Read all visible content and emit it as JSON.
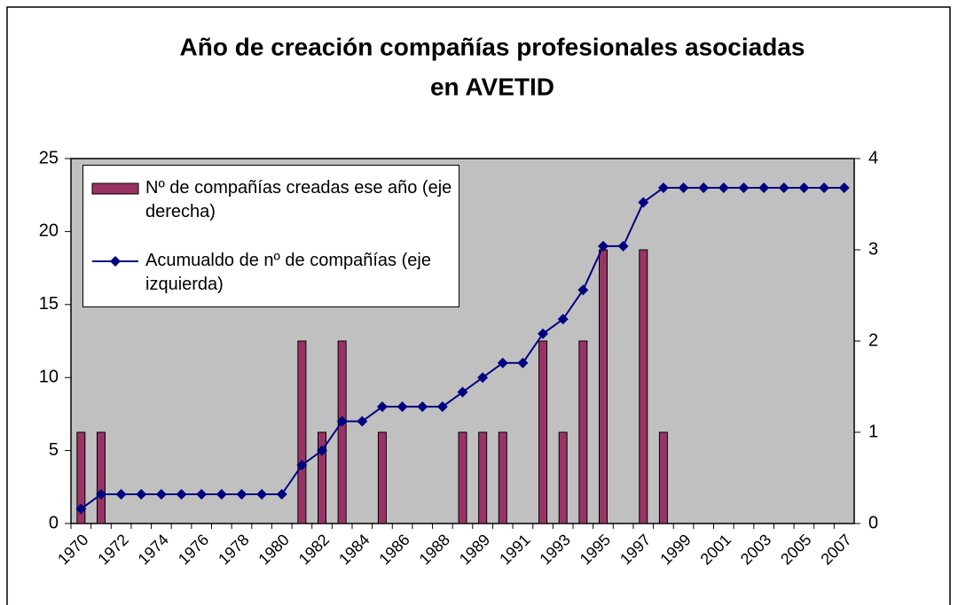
{
  "chart_data": {
    "type": "bar+line",
    "title": [
      "Año  de creación compañías profesionales asociadas",
      "en AVETID"
    ],
    "categories": [
      "1970",
      null,
      "1972",
      null,
      "1974",
      null,
      "1976",
      null,
      "1978",
      null,
      "1980",
      null,
      "1982",
      null,
      "1984",
      null,
      "1986",
      null,
      "1988",
      null,
      "1989",
      null,
      "1991",
      null,
      "1993",
      null,
      "1995",
      null,
      "1997",
      null,
      "1999",
      null,
      "2001",
      null,
      "2003",
      null,
      "2005",
      null,
      "2007"
    ],
    "series": [
      {
        "name": "Nº de compañías creadas ese año (eje derecha)",
        "type": "bar",
        "axis": "y2",
        "color": "#993366",
        "values": [
          1,
          1,
          0,
          0,
          0,
          0,
          0,
          0,
          0,
          0,
          0,
          2,
          1,
          2,
          0,
          1,
          0,
          0,
          0,
          1,
          1,
          1,
          0,
          2,
          1,
          2,
          3,
          0,
          3,
          1,
          0,
          0,
          0,
          0,
          0,
          0,
          0,
          0,
          0
        ]
      },
      {
        "name": "Acumualdo de nº de compañías (eje izquierda)",
        "type": "line",
        "axis": "y",
        "color": "#000080",
        "values": [
          1,
          2,
          2,
          2,
          2,
          2,
          2,
          2,
          2,
          2,
          2,
          4,
          5,
          7,
          7,
          8,
          8,
          8,
          8,
          9,
          10,
          11,
          11,
          13,
          14,
          16,
          19,
          19,
          22,
          23,
          23,
          23,
          23,
          23,
          23,
          23,
          23,
          23,
          23
        ]
      }
    ],
    "ylim": [
      0,
      25
    ],
    "yticks": [
      0,
      5,
      10,
      15,
      20,
      25
    ],
    "y2lim": [
      0,
      4
    ],
    "y2ticks": [
      0,
      1,
      2,
      3,
      4
    ],
    "plot_background": "#c0c0c0",
    "grid": false
  }
}
